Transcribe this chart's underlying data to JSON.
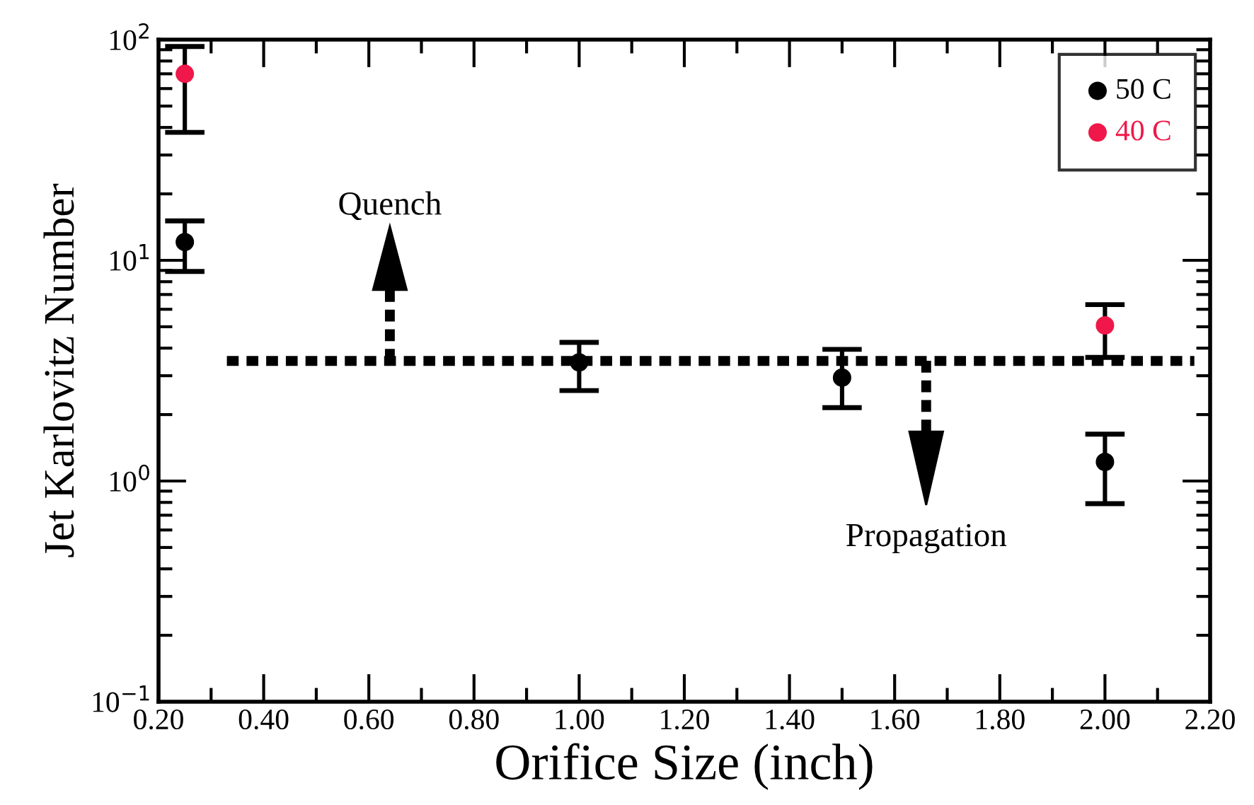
{
  "chart_data": {
    "type": "scatter",
    "xlabel": "Orifice Size (inch)",
    "ylabel": "Jet Karlovitz Number",
    "series": [
      {
        "name": "50 C",
        "color": "#000000",
        "x": [
          0.25,
          1.0,
          1.5,
          2.0
        ],
        "values": [
          12.1,
          3.45,
          2.94,
          1.22
        ],
        "errors": [
          [
            8.9,
            15.1
          ],
          [
            2.57,
            4.25
          ],
          [
            2.15,
            3.95
          ],
          [
            0.79,
            1.63
          ]
        ]
      },
      {
        "name": "40 C",
        "color": "#f0184a",
        "x": [
          0.25,
          2.0
        ],
        "values": [
          70,
          5.07
        ],
        "errors": [
          [
            38,
            93
          ],
          [
            3.63,
            6.3
          ]
        ]
      },
      {
        "type": "line",
        "color": "#000000",
        "line_style": "dashed",
        "marker": "none",
        "x": [
          0.33,
          2.17
        ],
        "values": [
          3.5,
          3.5
        ]
      }
    ],
    "annotations": [
      "Quench",
      "Propagation"
    ],
    "marker": "circle",
    "log": "y",
    "legend": "top right",
    "grid": false,
    "xlim": [
      0.2,
      2.2
    ],
    "xticks": [
      {
        "value": 0.2,
        "label": "0.20"
      },
      {
        "value": 0.4,
        "label": "0.40"
      },
      {
        "value": 0.6,
        "label": "0.60"
      },
      {
        "value": 0.8,
        "label": "0.80"
      },
      {
        "value": 1.0,
        "label": "1.00"
      },
      {
        "value": 1.2,
        "label": "1.20"
      },
      {
        "value": 1.4,
        "label": "1.40"
      },
      {
        "value": 1.6,
        "label": "1.60"
      },
      {
        "value": 1.8,
        "label": "1.80"
      },
      {
        "value": 2.0,
        "label": "2.00"
      },
      {
        "value": 2.2,
        "label": "2.20"
      }
    ],
    "ylim": [
      0.1,
      100
    ],
    "yticks": [
      {
        "value": 0.1,
        "label": "10$^{−1}$"
      },
      {
        "value": 1,
        "label": "10$^{0}$"
      },
      {
        "value": 10,
        "label": "10$^{1}$"
      },
      {
        "value": 100,
        "label": "10$^{2}$"
      }
    ]
  }
}
